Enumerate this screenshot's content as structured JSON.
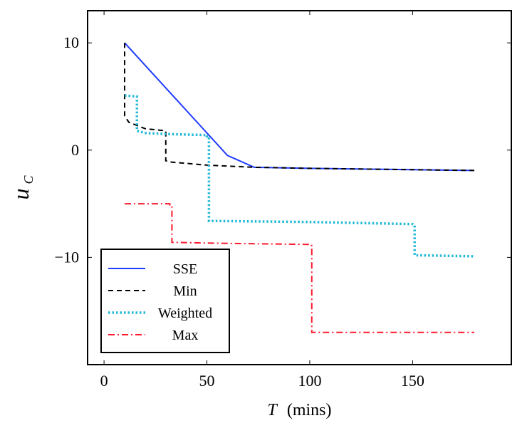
{
  "chart_data": {
    "type": "line",
    "title": "",
    "xlabel": {
      "var": "T",
      "unit": "(mins)"
    },
    "ylabel": {
      "base": "u",
      "sub": "C"
    },
    "xlim": [
      -8,
      198
    ],
    "ylim": [
      -20,
      13
    ],
    "xticks": [
      0,
      50,
      100,
      150
    ],
    "xtick_labels": [
      "0",
      "50",
      "100",
      "150"
    ],
    "yticks": [
      10,
      0,
      -10
    ],
    "ytick_labels": [
      "10",
      "0",
      "−10"
    ],
    "grid": false,
    "legend_position": "bottom-left",
    "series": [
      {
        "name": "SSE",
        "color": "#1f3bff",
        "style": "solid",
        "x": [
          10,
          60,
          73,
          100,
          140,
          180
        ],
        "y": [
          10,
          -0.5,
          -1.6,
          -1.7,
          -1.8,
          -1.9
        ]
      },
      {
        "name": "Min",
        "color": "#000000",
        "style": "dashed",
        "x": [
          10,
          10,
          12,
          20,
          30,
          30,
          32,
          50,
          73,
          100,
          140,
          180
        ],
        "y": [
          10,
          3.2,
          2.6,
          2.0,
          1.8,
          -1.0,
          -1.1,
          -1.4,
          -1.6,
          -1.7,
          -1.8,
          -1.9
        ]
      },
      {
        "name": "Weighted",
        "color": "#1fb8d6",
        "style": "dotted",
        "x": [
          10,
          16,
          16,
          20,
          30,
          50,
          50,
          51,
          51,
          100,
          150,
          151,
          151,
          180
        ],
        "y": [
          5.1,
          5.0,
          1.8,
          1.6,
          1.5,
          1.4,
          1.3,
          1.3,
          -6.6,
          -6.7,
          -6.9,
          -7.0,
          -9.8,
          -9.9
        ]
      },
      {
        "name": "Max",
        "color": "#ff1a2e",
        "style": "dashdot",
        "x": [
          10,
          32,
          32,
          33,
          33,
          60,
          100,
          100,
          101,
          101,
          180
        ],
        "y": [
          -5,
          -5,
          -5.1,
          -5.1,
          -8.6,
          -8.7,
          -8.8,
          -8.9,
          -8.9,
          -17.0,
          -17.0
        ]
      }
    ]
  }
}
